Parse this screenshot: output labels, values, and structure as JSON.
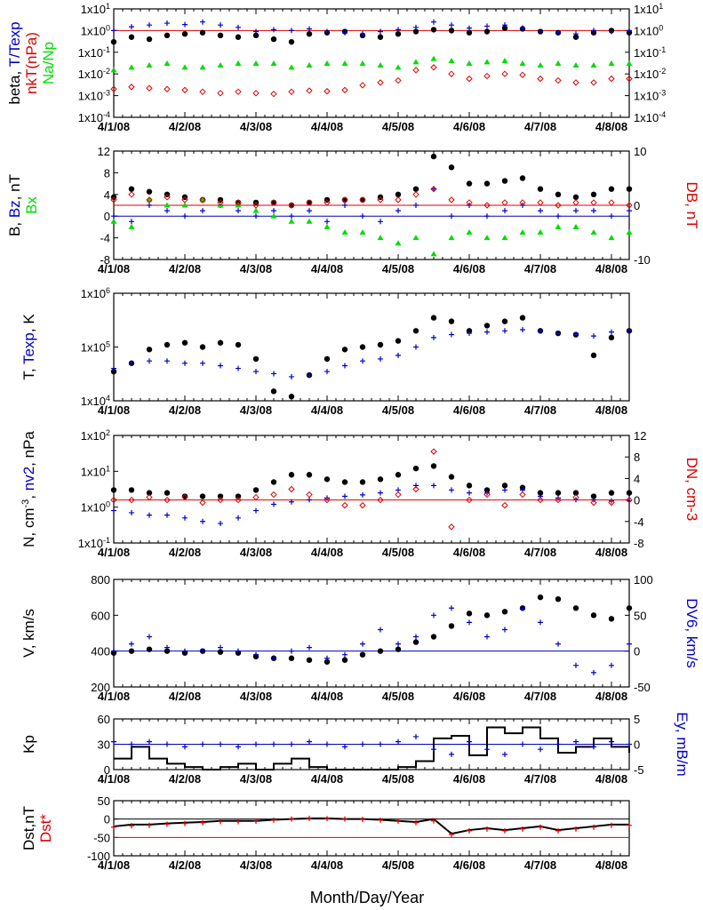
{
  "figure": {
    "x_title": "Month/Day/Year",
    "x_ticks": [
      "4/1/08",
      "4/2/08",
      "4/3/08",
      "4/4/08",
      "4/5/08",
      "4/6/08",
      "4/7/08",
      "4/8/08"
    ],
    "colors": {
      "black": "#000000",
      "blue": "#0000cc",
      "red": "#dd0000",
      "green": "#00dd00"
    }
  },
  "chart_data": [
    {
      "type": "scatter",
      "panel": "beta / T/Texp / nkT / Na/Np",
      "yscale": "log",
      "ylim": [
        0.0001,
        10
      ],
      "left_ticks": [
        "1x10-4",
        "1x10-3",
        "1x10-2",
        "1x10-1",
        "1x100",
        "1x101"
      ],
      "right_ticks": [
        "1x10-4",
        "1x10-3",
        "1x10-2",
        "1x10-1",
        "1x100",
        "1x101"
      ],
      "ylabel_left": [
        [
          "beta, ",
          "T/Texp"
        ],
        [
          "nkT(nPa)"
        ],
        [
          "Na/Np"
        ]
      ],
      "ref_lines": [
        {
          "y": 1,
          "color": "red"
        }
      ],
      "x": [
        0,
        0.25,
        0.5,
        0.75,
        1,
        1.25,
        1.5,
        1.75,
        2,
        2.25,
        2.5,
        2.75,
        3,
        3.25,
        3.5,
        3.75,
        4,
        4.25,
        4.5,
        4.75,
        5,
        5.25,
        5.5,
        5.75,
        6,
        6.25,
        6.5,
        6.75,
        7,
        7.25
      ],
      "series": [
        {
          "name": "beta",
          "color": "black",
          "marker": "dot",
          "values": [
            0.3,
            0.5,
            0.4,
            0.6,
            0.7,
            0.8,
            0.6,
            0.5,
            0.6,
            0.4,
            0.3,
            0.7,
            0.8,
            0.9,
            0.6,
            0.5,
            0.7,
            0.9,
            1.1,
            1.0,
            0.8,
            0.9,
            1.3,
            1.2,
            0.9,
            0.8,
            0.5,
            0.8,
            1.0,
            0.8
          ]
        },
        {
          "name": "T/Texp",
          "color": "blue",
          "marker": "cross",
          "values": [
            1.0,
            1.5,
            1.8,
            2.2,
            1.9,
            2.5,
            1.8,
            1.4,
            0.9,
            1.1,
            1.0,
            1.2,
            0.9,
            0.8,
            0.7,
            0.9,
            1.1,
            1.4,
            2.5,
            1.8,
            1.3,
            1.6,
            1.8,
            1.3,
            0.9,
            0.8,
            0.7,
            1.0,
            0.9,
            1.0
          ]
        },
        {
          "name": "nkT(nPa)",
          "color": "red",
          "marker": "diamond",
          "values": [
            0.002,
            0.0025,
            0.0022,
            0.002,
            0.0018,
            0.0015,
            0.0013,
            0.0015,
            0.0013,
            0.0012,
            0.0015,
            0.0017,
            0.0016,
            0.0018,
            0.003,
            0.004,
            0.005,
            0.015,
            0.02,
            0.01,
            0.006,
            0.008,
            0.01,
            0.009,
            0.006,
            0.005,
            0.004,
            0.004,
            0.006,
            0.006
          ]
        },
        {
          "name": "Na/Np",
          "color": "green",
          "marker": "triangle",
          "values": [
            0.015,
            0.02,
            0.025,
            0.03,
            0.02,
            0.02,
            0.025,
            0.03,
            0.03,
            0.03,
            0.02,
            0.025,
            0.03,
            0.03,
            0.03,
            0.025,
            0.02,
            0.035,
            0.05,
            0.04,
            0.03,
            0.035,
            0.04,
            0.03,
            0.025,
            0.03,
            0.025,
            0.025,
            0.03,
            0.03
          ]
        }
      ]
    },
    {
      "type": "scatter",
      "panel": "B, Bz, Bx / DB",
      "ylim": [
        -8,
        12
      ],
      "ylim_right": [
        -10,
        10
      ],
      "left_ticks": [
        "-8",
        "-4",
        "0",
        "4",
        "8",
        "12"
      ],
      "right_ticks": [
        "-10",
        "0",
        "10"
      ],
      "ylabel_left": [
        [
          "B, ",
          "Bz",
          ", nT"
        ],
        [
          "Bx"
        ]
      ],
      "ylabel_right": "DB, nT",
      "ref_lines": [
        {
          "y": 0,
          "color": "blue"
        },
        {
          "y": 2,
          "color": "red"
        }
      ],
      "x": [
        0,
        0.25,
        0.5,
        0.75,
        1,
        1.25,
        1.5,
        1.75,
        2,
        2.25,
        2.5,
        2.75,
        3,
        3.25,
        3.5,
        3.75,
        4,
        4.25,
        4.5,
        4.75,
        5,
        5.25,
        5.5,
        5.75,
        6,
        6.25,
        6.5,
        6.75,
        7,
        7.25
      ],
      "series": [
        {
          "name": "B",
          "color": "black",
          "marker": "dot",
          "values": [
            3.5,
            5,
            4.5,
            4,
            3.5,
            3,
            3,
            2.5,
            2.5,
            2.5,
            2,
            2.5,
            3,
            3,
            3,
            3.5,
            4,
            5,
            11,
            9,
            6,
            6,
            6.5,
            7,
            5,
            4,
            3.5,
            4,
            5,
            5
          ]
        },
        {
          "name": "Bz",
          "color": "blue",
          "marker": "cross",
          "values": [
            0,
            -1,
            2,
            1,
            0,
            1,
            2,
            1,
            0,
            1,
            0,
            1,
            -1,
            2,
            0,
            -1,
            1,
            2,
            5,
            0,
            2,
            0,
            1,
            2,
            1,
            0,
            1,
            1,
            0,
            1
          ]
        },
        {
          "name": "Bx",
          "color": "green",
          "marker": "triangle",
          "values": [
            -1,
            -2,
            3,
            2,
            2,
            3,
            2,
            2,
            1,
            0,
            -1,
            -1,
            -2,
            -3,
            -3,
            -4,
            -5,
            -4,
            -7,
            -4,
            -3,
            -4,
            -4,
            -3,
            -3,
            -2,
            -2,
            -3,
            -4,
            -3
          ]
        },
        {
          "name": "DB",
          "color": "red",
          "marker": "diamond",
          "axis": "right",
          "values": [
            1,
            2,
            1,
            1.5,
            1,
            1,
            0.5,
            0.5,
            0,
            0.5,
            0,
            0.5,
            0.5,
            1,
            1,
            1,
            1,
            2,
            3,
            1,
            0.5,
            0,
            0.5,
            0.5,
            0.5,
            0,
            0.5,
            0.5,
            0.5,
            0
          ]
        }
      ]
    },
    {
      "type": "scatter",
      "panel": "T, Texp",
      "yscale": "log",
      "ylim": [
        10000,
        1000000
      ],
      "left_ticks": [
        "1x104",
        "1x105",
        "1x106"
      ],
      "ylabel_left": [
        [
          "T, ",
          "Texp",
          ", K"
        ]
      ],
      "ref_lines": [],
      "x": [
        0,
        0.25,
        0.5,
        0.75,
        1,
        1.25,
        1.5,
        1.75,
        2,
        2.25,
        2.5,
        2.75,
        3,
        3.25,
        3.5,
        3.75,
        4,
        4.25,
        4.5,
        4.75,
        5,
        5.25,
        5.5,
        5.75,
        6,
        6.25,
        6.5,
        6.75,
        7,
        7.25
      ],
      "series": [
        {
          "name": "T",
          "color": "black",
          "marker": "dot",
          "values": [
            35000,
            50000,
            90000,
            110000,
            120000,
            100000,
            120000,
            110000,
            60000,
            15000,
            12000,
            30000,
            60000,
            90000,
            100000,
            110000,
            130000,
            200000,
            350000,
            300000,
            200000,
            250000,
            300000,
            350000,
            200000,
            180000,
            170000,
            70000,
            150000,
            200000
          ]
        },
        {
          "name": "Texp",
          "color": "blue",
          "marker": "cross",
          "values": [
            40000,
            50000,
            55000,
            55000,
            50000,
            50000,
            45000,
            40000,
            35000,
            32000,
            28000,
            30000,
            35000,
            45000,
            55000,
            60000,
            70000,
            100000,
            150000,
            170000,
            180000,
            190000,
            200000,
            210000,
            200000,
            180000,
            170000,
            160000,
            190000,
            200000
          ]
        }
      ]
    },
    {
      "type": "scatter",
      "panel": "N, nv2 / DN",
      "yscale": "log",
      "ylim": [
        0.1,
        100
      ],
      "ylim_right": [
        -8,
        12
      ],
      "left_ticks": [
        "1x10-1",
        "1x100",
        "1x101",
        "1x102"
      ],
      "right_ticks": [
        "-8",
        "-4",
        "0",
        "4",
        "8",
        "12"
      ],
      "ylabel_left": [
        [
          "N, cm",
          "-3",
          ", ",
          "nv2",
          ", nPa"
        ]
      ],
      "ylabel_right": "DN, cm-3",
      "ref_lines": [
        {
          "y_right": 0,
          "color": "red"
        }
      ],
      "x": [
        0,
        0.25,
        0.5,
        0.75,
        1,
        1.25,
        1.5,
        1.75,
        2,
        2.25,
        2.5,
        2.75,
        3,
        3.25,
        3.5,
        3.75,
        4,
        4.25,
        4.5,
        4.75,
        5,
        5.25,
        5.5,
        5.75,
        6,
        6.25,
        6.5,
        6.75,
        7,
        7.25
      ],
      "series": [
        {
          "name": "N",
          "color": "black",
          "marker": "dot",
          "values": [
            3,
            3,
            2.5,
            2.5,
            2,
            2,
            2,
            2,
            3,
            5,
            8,
            8,
            6,
            5,
            5,
            6,
            8,
            12,
            14,
            7,
            4,
            3,
            4,
            3.5,
            2.5,
            2.5,
            2.5,
            2,
            2.5,
            2.5
          ]
        },
        {
          "name": "nv2",
          "color": "blue",
          "marker": "cross",
          "values": [
            0.8,
            0.7,
            0.6,
            0.6,
            0.5,
            0.4,
            0.35,
            0.5,
            0.8,
            1.2,
            1.4,
            1.6,
            1.8,
            2,
            2.2,
            2.5,
            3,
            4,
            4,
            3,
            2.5,
            2.5,
            3,
            3,
            2,
            1.8,
            1.6,
            1.6,
            1.5,
            1.5
          ]
        },
        {
          "name": "DN",
          "color": "red",
          "marker": "diamond",
          "axis": "right",
          "values": [
            0,
            0,
            0.5,
            0,
            0.5,
            -0.5,
            0,
            0,
            0.5,
            1,
            2,
            1,
            0,
            -1,
            -1,
            0,
            1,
            2,
            9,
            -5,
            0,
            1,
            -1,
            1,
            0,
            0,
            0.5,
            -0.5,
            -0.5,
            0
          ]
        }
      ]
    },
    {
      "type": "scatter",
      "panel": "V / DV6",
      "ylim": [
        200,
        800
      ],
      "ylim_right": [
        -50,
        100
      ],
      "left_ticks": [
        "200",
        "400",
        "600",
        "800"
      ],
      "right_ticks": [
        "-50",
        "0",
        "50",
        "100"
      ],
      "ylabel_left": [
        [
          "V, km/s"
        ]
      ],
      "ylabel_right": "DV6, km/s",
      "ref_lines": [
        {
          "y": 400,
          "color": "blue"
        }
      ],
      "x": [
        0,
        0.25,
        0.5,
        0.75,
        1,
        1.25,
        1.5,
        1.75,
        2,
        2.25,
        2.5,
        2.75,
        3,
        3.25,
        3.5,
        3.75,
        4,
        4.25,
        4.5,
        4.75,
        5,
        5.25,
        5.5,
        5.75,
        6,
        6.25,
        6.5,
        6.75,
        7,
        7.25
      ],
      "series": [
        {
          "name": "V",
          "color": "black",
          "marker": "dot",
          "values": [
            390,
            400,
            410,
            400,
            390,
            400,
            395,
            390,
            370,
            360,
            360,
            350,
            340,
            350,
            380,
            400,
            410,
            450,
            480,
            540,
            610,
            600,
            620,
            640,
            700,
            690,
            640,
            600,
            580,
            640
          ]
        },
        {
          "name": "DV6",
          "color": "blue",
          "marker": "cross",
          "axis": "right",
          "values": [
            0,
            10,
            20,
            5,
            0,
            0,
            5,
            0,
            -5,
            -10,
            0,
            5,
            -10,
            -5,
            10,
            30,
            10,
            20,
            50,
            60,
            40,
            20,
            30,
            60,
            40,
            10,
            -20,
            -30,
            -20,
            10
          ]
        }
      ]
    },
    {
      "type": "line",
      "panel": "Kp / Ey",
      "ylim": [
        0,
        60
      ],
      "ylim_right": [
        -5,
        5
      ],
      "left_ticks": [
        "0",
        "30",
        "60"
      ],
      "right_ticks": [
        "-5",
        "0",
        "5"
      ],
      "ylabel_left": [
        [
          "Kp"
        ]
      ],
      "ylabel_right": "Ey, mB/m",
      "ref_lines": [
        {
          "y": 30,
          "color": "blue"
        }
      ],
      "x": [
        0,
        0.25,
        0.5,
        0.75,
        1,
        1.25,
        1.5,
        1.75,
        2,
        2.25,
        2.5,
        2.75,
        3,
        3.25,
        3.5,
        3.75,
        4,
        4.25,
        4.5,
        4.75,
        5,
        5.25,
        5.5,
        5.75,
        6,
        6.25,
        6.5,
        6.75,
        7,
        7.25
      ],
      "series": [
        {
          "name": "Kp",
          "color": "black",
          "marker": "step",
          "values": [
            13,
            27,
            13,
            7,
            3,
            0,
            3,
            7,
            0,
            7,
            13,
            3,
            0,
            0,
            0,
            0,
            3,
            10,
            37,
            40,
            17,
            50,
            43,
            50,
            37,
            20,
            27,
            37,
            27,
            20
          ]
        },
        {
          "name": "Ey",
          "color": "blue",
          "marker": "cross",
          "axis": "right",
          "values": [
            0.5,
            0,
            0.5,
            0,
            -0.5,
            0,
            0,
            -0.5,
            0,
            0,
            0,
            0.5,
            0,
            -0.5,
            0,
            0,
            0.5,
            1.5,
            -1,
            -2,
            0.5,
            -1,
            -2,
            0,
            -1,
            0,
            0.5,
            -0.5,
            0.5,
            0
          ]
        }
      ]
    },
    {
      "type": "line",
      "panel": "Dst / Dst*",
      "ylim": [
        -100,
        50
      ],
      "left_ticks": [
        "-100",
        "-50",
        "0",
        "50"
      ],
      "ylabel_left": [
        [
          "Dst,nT"
        ],
        [
          "Dst*"
        ]
      ],
      "ref_lines": [
        {
          "y": 0,
          "color": "black"
        },
        {
          "y": -50,
          "color": "red"
        }
      ],
      "x": [
        0,
        0.25,
        0.5,
        0.75,
        1,
        1.25,
        1.5,
        1.75,
        2,
        2.25,
        2.5,
        2.75,
        3,
        3.25,
        3.5,
        3.75,
        4,
        4.25,
        4.5,
        4.75,
        5,
        5.25,
        5.5,
        5.75,
        6,
        6.25,
        6.5,
        6.75,
        7,
        7.25
      ],
      "series": [
        {
          "name": "Dst",
          "color": "black",
          "marker": "line",
          "values": [
            -20,
            -15,
            -15,
            -12,
            -10,
            -8,
            -5,
            -5,
            -5,
            -2,
            0,
            2,
            2,
            0,
            0,
            -2,
            -5,
            -8,
            0,
            -40,
            -30,
            -25,
            -30,
            -25,
            -20,
            -30,
            -25,
            -20,
            -15,
            -15
          ]
        },
        {
          "name": "Dst*",
          "color": "red",
          "marker": "cross",
          "values": [
            -22,
            -18,
            -17,
            -14,
            -12,
            -10,
            -7,
            -7,
            -6,
            -3,
            0,
            2,
            1,
            0,
            -1,
            -3,
            -6,
            -10,
            -5,
            -42,
            -32,
            -27,
            -32,
            -27,
            -22,
            -32,
            -27,
            -22,
            -17,
            -17
          ]
        }
      ]
    }
  ]
}
